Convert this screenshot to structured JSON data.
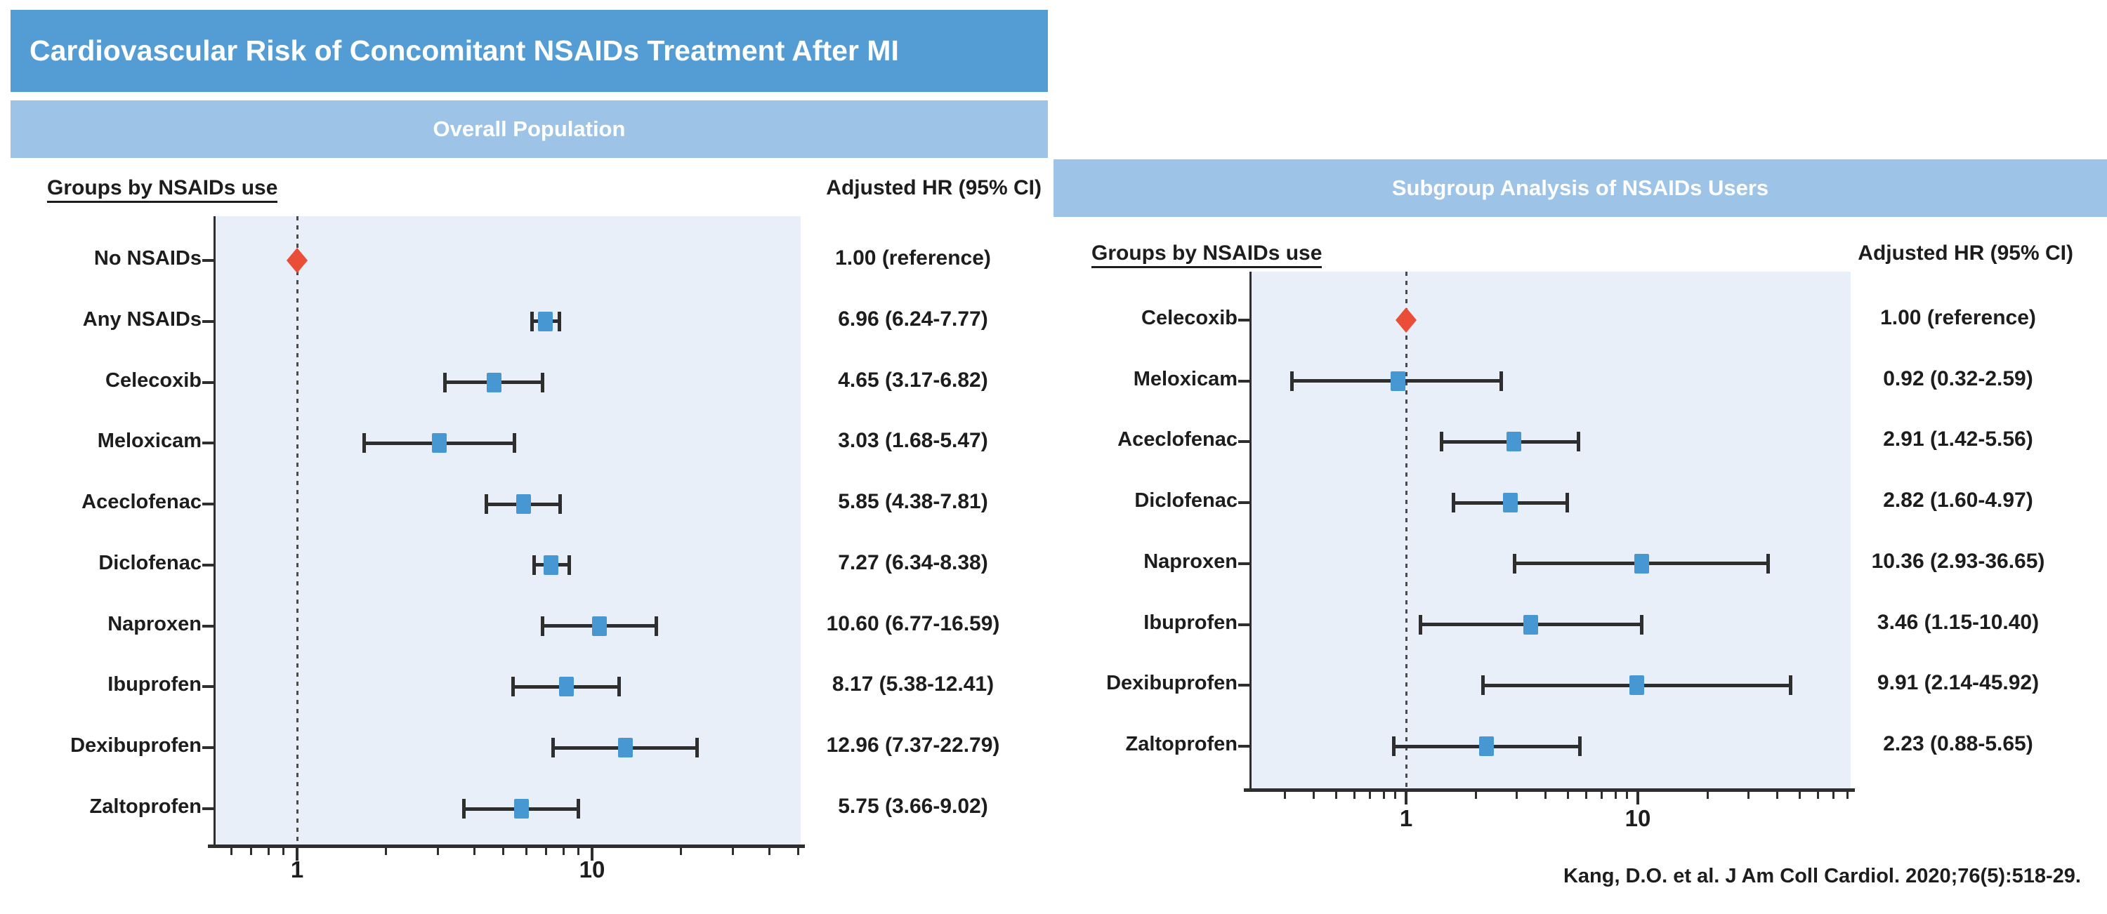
{
  "title": "Cardiovascular Risk of Concomitant NSAIDs Treatment After MI",
  "citation": "Kang, D.O. et al. J Am Coll Cardiol. 2020;76(5):518-29.",
  "colors": {
    "title_bar": "#549dd4",
    "panel_bar": "#9dc4e6",
    "plot_background": "#e9eff8",
    "marker_blue": "#4697d2",
    "reference_red": "#eb4e38",
    "text": "#1d1d1d",
    "axis": "#2e2e2e"
  },
  "chart_data": [
    {
      "type": "forest",
      "title": "Overall Population",
      "group_header": "Groups by NSAIDs use",
      "value_header": "Adjusted HR (95% CI)",
      "x_scale": "log",
      "x_major_ticks": [
        1,
        10
      ],
      "xlim": [
        0.52,
        51
      ],
      "grid": false,
      "reference_line_at": 1,
      "rows": [
        {
          "label": "No NSAIDs",
          "hr": 1.0,
          "lo": null,
          "hi": null,
          "text": "1.00 (reference)",
          "reference": true
        },
        {
          "label": "Any NSAIDs",
          "hr": 6.96,
          "lo": 6.24,
          "hi": 7.77,
          "text": "6.96 (6.24-7.77)",
          "reference": false
        },
        {
          "label": "Celecoxib",
          "hr": 4.65,
          "lo": 3.17,
          "hi": 6.82,
          "text": "4.65 (3.17-6.82)",
          "reference": false
        },
        {
          "label": "Meloxicam",
          "hr": 3.03,
          "lo": 1.68,
          "hi": 5.47,
          "text": "3.03 (1.68-5.47)",
          "reference": false
        },
        {
          "label": "Aceclofenac",
          "hr": 5.85,
          "lo": 4.38,
          "hi": 7.81,
          "text": "5.85 (4.38-7.81)",
          "reference": false
        },
        {
          "label": "Diclofenac",
          "hr": 7.27,
          "lo": 6.34,
          "hi": 8.38,
          "text": "7.27 (6.34-8.38)",
          "reference": false
        },
        {
          "label": "Naproxen",
          "hr": 10.6,
          "lo": 6.77,
          "hi": 16.59,
          "text": "10.60 (6.77-16.59)",
          "reference": false
        },
        {
          "label": "Ibuprofen",
          "hr": 8.17,
          "lo": 5.38,
          "hi": 12.41,
          "text": "8.17 (5.38-12.41)",
          "reference": false
        },
        {
          "label": "Dexibuprofen",
          "hr": 12.96,
          "lo": 7.37,
          "hi": 22.79,
          "text": "12.96 (7.37-22.79)",
          "reference": false
        },
        {
          "label": "Zaltoprofen",
          "hr": 5.75,
          "lo": 3.66,
          "hi": 9.02,
          "text": "5.75 (3.66-9.02)",
          "reference": false
        }
      ]
    },
    {
      "type": "forest",
      "title": "Subgroup Analysis of NSAIDs Users",
      "group_header": "Groups by NSAIDs use",
      "value_header": "Adjusted HR (95% CI)",
      "x_scale": "log",
      "x_major_ticks": [
        1,
        10
      ],
      "xlim": [
        0.21,
        80
      ],
      "grid": false,
      "reference_line_at": 1,
      "rows": [
        {
          "label": "Celecoxib",
          "hr": 1.0,
          "lo": null,
          "hi": null,
          "text": "1.00 (reference)",
          "reference": true
        },
        {
          "label": "Meloxicam",
          "hr": 0.92,
          "lo": 0.32,
          "hi": 2.59,
          "text": "0.92 (0.32-2.59)",
          "reference": false
        },
        {
          "label": "Aceclofenac",
          "hr": 2.91,
          "lo": 1.42,
          "hi": 5.56,
          "text": "2.91 (1.42-5.56)",
          "reference": false
        },
        {
          "label": "Diclofenac",
          "hr": 2.82,
          "lo": 1.6,
          "hi": 4.97,
          "text": "2.82 (1.60-4.97)",
          "reference": false
        },
        {
          "label": "Naproxen",
          "hr": 10.36,
          "lo": 2.93,
          "hi": 36.65,
          "text": "10.36 (2.93-36.65)",
          "reference": false
        },
        {
          "label": "Ibuprofen",
          "hr": 3.46,
          "lo": 1.15,
          "hi": 10.4,
          "text": "3.46 (1.15-10.40)",
          "reference": false
        },
        {
          "label": "Dexibuprofen",
          "hr": 9.91,
          "lo": 2.14,
          "hi": 45.92,
          "text": "9.91 (2.14-45.92)",
          "reference": false
        },
        {
          "label": "Zaltoprofen",
          "hr": 2.23,
          "lo": 0.88,
          "hi": 5.65,
          "text": "2.23 (0.88-5.65)",
          "reference": false
        }
      ]
    }
  ]
}
